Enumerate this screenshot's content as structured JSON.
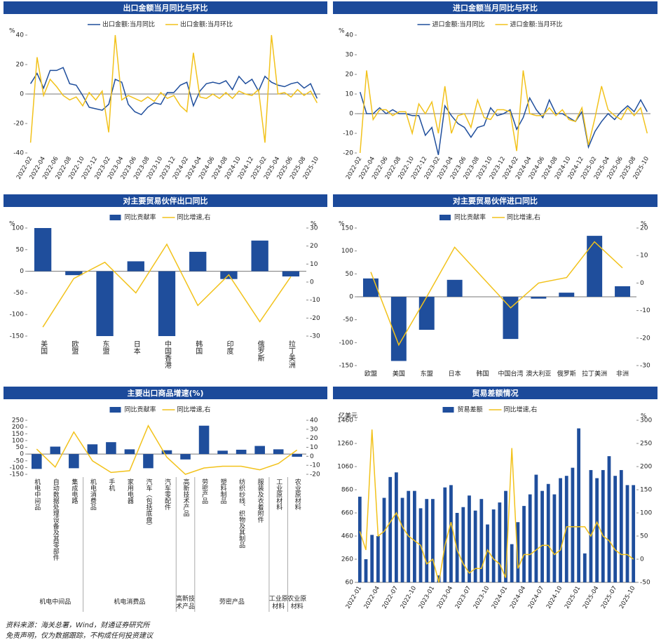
{
  "chart_data": [
    {
      "type": "line",
      "title": "出口金额当月同比与环比",
      "y_label": "%",
      "x": [
        "2022-02",
        null,
        "2022-04",
        null,
        "2022-06",
        null,
        "2022-08",
        null,
        "2022-10",
        null,
        "2022-12",
        null,
        "2023-02",
        null,
        "2023-04",
        null,
        "2023-06",
        null,
        "2023-08",
        null,
        "2023-10",
        null,
        "2023-12",
        null,
        "2024-02",
        null,
        "2024-04",
        null,
        "2024-06",
        null,
        "2024-08",
        null,
        "2024-10",
        null,
        "2024-12",
        null,
        "2025-02",
        null,
        "2025-04",
        null,
        "2025-06",
        null,
        "2025-08",
        null,
        "2025-10"
      ],
      "ylim": [
        -40,
        40
      ],
      "yticks": [
        -40,
        -20,
        0,
        20,
        40
      ],
      "series": [
        {
          "name": "出口金额:当月同比",
          "type": "line",
          "color": "#1f4e9c",
          "values": [
            7,
            14,
            4,
            16,
            16,
            18,
            7,
            6,
            -1,
            -9,
            -10,
            -11,
            -7,
            10,
            8,
            -7,
            -12,
            -14,
            -9,
            -6,
            -7,
            1,
            1,
            6,
            8,
            -8,
            2,
            7,
            8,
            7,
            9,
            3,
            12,
            7,
            10,
            2,
            12,
            8,
            6,
            5,
            7,
            8,
            4,
            7,
            -3
          ]
        },
        {
          "name": "出口金额:当月环比",
          "type": "line",
          "color": "#f2c21b",
          "values": [
            -33,
            25,
            -1,
            10,
            5,
            -1,
            -4,
            -2,
            -8,
            1,
            -4,
            2,
            -26,
            40,
            -4,
            -1,
            -3,
            -5,
            -2,
            -5,
            1,
            -3,
            -1,
            -8,
            -12,
            28,
            -2,
            -3,
            0,
            -3,
            1,
            -3,
            2,
            0,
            -1,
            3,
            -33,
            40,
            0,
            1,
            -2,
            3,
            -1,
            2,
            -6
          ]
        }
      ]
    },
    {
      "type": "line",
      "title": "进口金额当月同比与环比",
      "y_label": "%",
      "x": [
        "2022-02",
        null,
        "2022-04",
        null,
        "2022-06",
        null,
        "2022-08",
        null,
        "2022-10",
        null,
        "2022-12",
        null,
        "2023-02",
        null,
        "2023-04",
        null,
        "2023-06",
        null,
        "2023-08",
        null,
        "2023-10",
        null,
        "2023-12",
        null,
        "2024-02",
        null,
        "2024-04",
        null,
        "2024-06",
        null,
        "2024-08",
        null,
        "2024-10",
        null,
        "2024-12",
        null,
        "2025-02",
        null,
        "2025-04",
        null,
        "2025-06",
        null,
        "2025-08",
        null,
        "2025-10"
      ],
      "ylim": [
        -20,
        40
      ],
      "yticks": [
        -20,
        -10,
        0,
        10,
        20,
        30,
        40
      ],
      "series": [
        {
          "name": "进口金额:当月同比",
          "type": "line",
          "color": "#1f4e9c",
          "values": [
            11,
            0,
            0,
            3,
            0,
            2,
            0,
            0,
            -1,
            -1,
            -11,
            -7,
            -21,
            4,
            -1,
            -5,
            -7,
            -12,
            -7,
            -6,
            3,
            -1,
            0,
            2,
            -8,
            -2,
            8,
            2,
            -2,
            7,
            0,
            0,
            -2,
            -4,
            1,
            -17,
            -9,
            -4,
            0,
            -3,
            1,
            4,
            1,
            7,
            1
          ]
        },
        {
          "name": "进口金额:当月环比",
          "type": "line",
          "color": "#f2c21b",
          "values": [
            -20,
            22,
            -3,
            2,
            2,
            -1,
            1,
            1,
            -10,
            5,
            0,
            6,
            -10,
            14,
            -10,
            -1,
            0,
            -7,
            7,
            -2,
            -3,
            2,
            2,
            1,
            -19,
            22,
            0,
            -1,
            -1,
            3,
            -1,
            2,
            -3,
            -4,
            3,
            -16,
            -2,
            14,
            2,
            -1,
            -3,
            3,
            -1,
            3,
            -10
          ]
        }
      ]
    },
    {
      "type": "bar",
      "title": "对主要贸易伙伴出口同比",
      "y_label": "%",
      "y2_label": "%",
      "categories": [
        "美国",
        "欧盟",
        "东盟",
        "日本",
        "中国香港",
        "韩国",
        "印度",
        "俄罗斯",
        "拉丁美洲"
      ],
      "ylim": [
        -150,
        100
      ],
      "yticks": [
        -150,
        -100,
        -50,
        0,
        50,
        100
      ],
      "y2lim": [
        -30,
        30
      ],
      "y2ticks": [
        -30,
        -20,
        -10,
        0,
        10,
        20,
        30
      ],
      "series": [
        {
          "name": "同比贡献率",
          "type": "bar",
          "color": "#1f4e9c",
          "values": [
            100,
            -9,
            -150,
            23,
            -150,
            45,
            -18,
            71,
            -12
          ]
        },
        {
          "name": "同比增速,右",
          "type": "line",
          "axis": "y2",
          "color": "#f2c21b",
          "values": [
            -25,
            2,
            11,
            -6,
            21,
            -13,
            4,
            -22,
            3
          ]
        }
      ]
    },
    {
      "type": "bar",
      "title": "对主要贸易伙伴进口同比",
      "y_label": "%",
      "y2_label": "%",
      "categories": [
        "欧盟",
        "美国",
        "东盟",
        "日本",
        "韩国",
        "中国台湾",
        "澳大利亚",
        "俄罗斯",
        "拉丁美洲",
        "非洲"
      ],
      "ylim": [
        -150,
        150
      ],
      "yticks": [
        -150,
        -100,
        -50,
        0,
        50,
        100,
        150
      ],
      "y2lim": [
        -30,
        20
      ],
      "y2ticks": [
        -30,
        -20,
        -10,
        0,
        10,
        20
      ],
      "series": [
        {
          "name": "同比贡献率",
          "type": "bar",
          "color": "#1f4e9c",
          "values": [
            40,
            -140,
            -72,
            37,
            0,
            -92,
            -4,
            9,
            133,
            23
          ]
        },
        {
          "name": "同比增速,右",
          "type": "line",
          "axis": "y2",
          "color": "#f2c21b",
          "values": [
            4,
            -22.5,
            -5,
            13,
            2,
            -9,
            0,
            2,
            15,
            5.5
          ]
        }
      ]
    },
    {
      "type": "bar",
      "title": "主要出口商品增速(%)",
      "categories": [
        "机电中间品",
        "自动数据处理设备及其零部件",
        "集成电路",
        "机电消费品",
        "手机",
        "家用电器",
        "汽车（包括底盘）",
        "汽车零配件",
        "高新技术产品",
        "劳密产品",
        "塑料制品",
        "纺织纱线、织物及其制品",
        "服装及衣着附件",
        "工业原材料",
        "农业原材料"
      ],
      "groups": [
        "机电中间品",
        "机电消费品",
        "高新技术产品",
        "劳密产品",
        "工业原材料",
        "农业原材料"
      ],
      "ylim": [
        -150,
        250
      ],
      "yticks": [
        -150,
        -100,
        -50,
        0,
        50,
        100,
        150,
        200,
        250
      ],
      "y2lim": [
        -20,
        40
      ],
      "y2ticks": [
        -20,
        -10,
        0,
        10,
        20,
        30,
        40
      ],
      "series": [
        {
          "name": "同比贡献率",
          "type": "bar",
          "color": "#1f4e9c",
          "values": [
            -110,
            55,
            -105,
            72,
            88,
            35,
            -105,
            28,
            -40,
            210,
            25,
            32,
            60,
            35,
            -20
          ]
        },
        {
          "name": "同比增速,右",
          "type": "line",
          "axis": "y2",
          "color": "#f2c21b",
          "values": [
            8,
            -12,
            27,
            -5,
            -18,
            -16,
            34,
            -1,
            -20,
            -13,
            -11,
            -11,
            -15,
            -8,
            7
          ]
        }
      ]
    },
    {
      "type": "bar",
      "title": "贸易差额情况",
      "y_label": "亿美元",
      "y2_label": "%",
      "x": [
        "2022-01",
        null,
        null,
        "2022-04",
        null,
        null,
        "2022-07",
        null,
        null,
        "2022-10",
        null,
        null,
        "2023-01",
        null,
        null,
        "2023-04",
        null,
        null,
        "2023-07",
        null,
        null,
        "2023-10",
        null,
        null,
        "2024-01",
        null,
        null,
        "2024-04",
        null,
        null,
        "2024-07",
        null,
        null,
        "2024-10",
        null,
        null,
        "2025-01",
        null,
        null,
        "2025-04",
        null,
        null,
        "2025-07",
        null,
        null,
        "2025-10"
      ],
      "ylim": [
        60,
        1460
      ],
      "yticks": [
        60,
        260,
        460,
        660,
        860,
        1060,
        1260,
        1460
      ],
      "y2lim": [
        -50,
        300
      ],
      "y2ticks": [
        -50,
        0,
        50,
        100,
        150,
        200,
        250,
        300
      ],
      "series": [
        {
          "name": "贸易差额",
          "type": "bar",
          "color": "#1f4e9c",
          "values": [
            800,
            260,
            470,
            460,
            790,
            970,
            1010,
            790,
            850,
            850,
            700,
            780,
            780,
            120,
            880,
            900,
            660,
            710,
            810,
            680,
            780,
            560,
            690,
            750,
            850,
            390,
            580,
            720,
            820,
            990,
            850,
            910,
            820,
            960,
            980,
            1050,
            1390,
            310,
            1030,
            960,
            1030,
            1150,
            980,
            1030,
            900,
            900
          ]
        },
        {
          "name": "同比增速,右",
          "type": "line",
          "axis": "y2",
          "color": "#f2c21b",
          "values": [
            60,
            20,
            280,
            50,
            60,
            80,
            100,
            70,
            50,
            40,
            30,
            -10,
            0,
            -50,
            30,
            80,
            20,
            -10,
            -30,
            -20,
            -20,
            20,
            0,
            -10,
            -40,
            240,
            -20,
            10,
            10,
            20,
            30,
            30,
            10,
            20,
            70,
            70,
            70,
            70,
            50,
            80,
            50,
            40,
            20,
            10,
            10,
            0
          ]
        }
      ]
    }
  ],
  "footer": {
    "source": "资料来源：海关总署，Wind，财通证券研究所",
    "disclaimer": "免责声明，仅为数据跟踪，不构成任何投资建议"
  }
}
